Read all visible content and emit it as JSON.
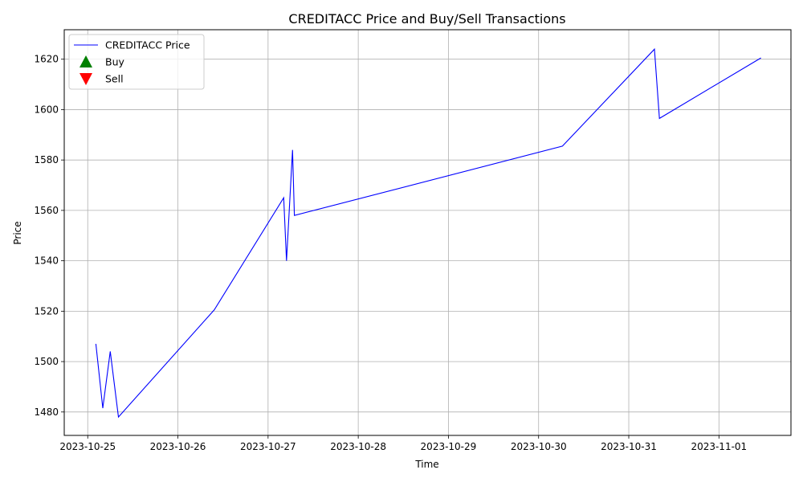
{
  "chart_data": {
    "type": "line",
    "title": "CREDITACC Price and Buy/Sell Transactions",
    "xlabel": "Time",
    "ylabel": "Price",
    "grid": true,
    "legend_position": "top-left",
    "x_ticks": [
      "2023-10-25",
      "2023-10-26",
      "2023-10-27",
      "2023-10-28",
      "2023-10-29",
      "2023-10-30",
      "2023-10-31",
      "2023-11-01"
    ],
    "y_ticks": [
      1480,
      1500,
      1520,
      1540,
      1560,
      1580,
      1600,
      1620
    ],
    "xlim": [
      "2023-10-24 17:45",
      "2023-11-01 19:10"
    ],
    "ylim": [
      1470.7,
      1631.7
    ],
    "series": [
      {
        "name": "CREDITACC Price",
        "color": "#0000ff",
        "points": [
          {
            "x": "2023-10-25 02:10",
            "y": 1507
          },
          {
            "x": "2023-10-25 04:00",
            "y": 1481.5
          },
          {
            "x": "2023-10-25 06:00",
            "y": 1504
          },
          {
            "x": "2023-10-25 08:10",
            "y": 1478
          },
          {
            "x": "2023-10-26 09:40",
            "y": 1520.5
          },
          {
            "x": "2023-10-27 04:10",
            "y": 1565
          },
          {
            "x": "2023-10-27 04:55",
            "y": 1540
          },
          {
            "x": "2023-10-27 06:30",
            "y": 1584
          },
          {
            "x": "2023-10-27 07:00",
            "y": 1558
          },
          {
            "x": "2023-10-30 06:20",
            "y": 1585.5
          },
          {
            "x": "2023-10-31 06:50",
            "y": 1624
          },
          {
            "x": "2023-10-31 08:10",
            "y": 1596.5
          },
          {
            "x": "2023-11-01 11:10",
            "y": 1620.5
          }
        ]
      },
      {
        "name": "Buy",
        "color": "#008000",
        "marker": "triangle-up",
        "points": []
      },
      {
        "name": "Sell",
        "color": "#ff0000",
        "marker": "triangle-down",
        "points": []
      }
    ]
  }
}
